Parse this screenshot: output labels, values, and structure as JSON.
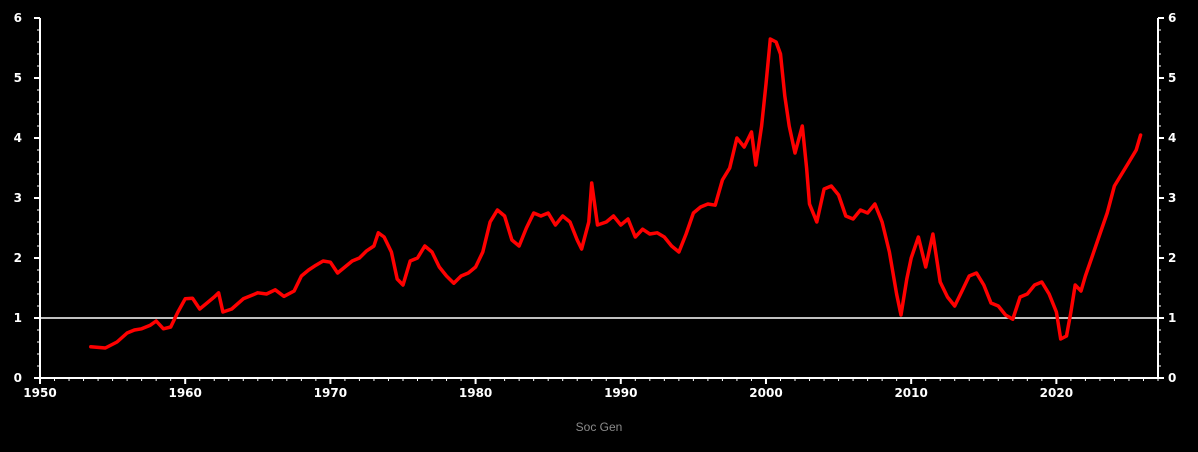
{
  "source": "Soc Gen",
  "colors": {
    "background": "#000000",
    "axis": "#ffffff",
    "series": "#ff0000",
    "reference_line": "#ffffff"
  },
  "chart_data": {
    "type": "line",
    "title": "",
    "xlabel": "",
    "ylabel": "",
    "xlim": [
      1950,
      2027
    ],
    "ylim": [
      0,
      6
    ],
    "x_ticks": [
      "1950",
      "1960",
      "1970",
      "1980",
      "1990",
      "2000",
      "2010",
      "2020"
    ],
    "y_ticks": [
      "0",
      "1",
      "2",
      "3",
      "4",
      "5",
      "6"
    ],
    "y_axis_both_sides": true,
    "reference_line": 1,
    "grid": false,
    "series": [
      {
        "points": [
          [
            1953.5,
            0.52
          ],
          [
            1954.5,
            0.5
          ],
          [
            1955.3,
            0.6
          ],
          [
            1956.0,
            0.75
          ],
          [
            1956.5,
            0.8
          ],
          [
            1957.0,
            0.82
          ],
          [
            1957.6,
            0.88
          ],
          [
            1958.0,
            0.95
          ],
          [
            1958.5,
            0.82
          ],
          [
            1959.0,
            0.85
          ],
          [
            1959.5,
            1.1
          ],
          [
            1960.0,
            1.32
          ],
          [
            1960.5,
            1.33
          ],
          [
            1961.0,
            1.15
          ],
          [
            1961.5,
            1.25
          ],
          [
            1962.0,
            1.35
          ],
          [
            1962.3,
            1.42
          ],
          [
            1962.6,
            1.1
          ],
          [
            1963.2,
            1.15
          ],
          [
            1964.0,
            1.32
          ],
          [
            1965.0,
            1.42
          ],
          [
            1965.6,
            1.4
          ],
          [
            1966.2,
            1.47
          ],
          [
            1966.8,
            1.36
          ],
          [
            1967.5,
            1.45
          ],
          [
            1968.0,
            1.7
          ],
          [
            1968.5,
            1.8
          ],
          [
            1969.0,
            1.88
          ],
          [
            1969.5,
            1.95
          ],
          [
            1970.0,
            1.93
          ],
          [
            1970.5,
            1.75
          ],
          [
            1971.0,
            1.85
          ],
          [
            1971.5,
            1.95
          ],
          [
            1972.0,
            2.0
          ],
          [
            1972.5,
            2.12
          ],
          [
            1973.0,
            2.2
          ],
          [
            1973.3,
            2.42
          ],
          [
            1973.7,
            2.35
          ],
          [
            1974.2,
            2.1
          ],
          [
            1974.6,
            1.65
          ],
          [
            1975.0,
            1.55
          ],
          [
            1975.5,
            1.95
          ],
          [
            1976.0,
            2.0
          ],
          [
            1976.5,
            2.2
          ],
          [
            1977.0,
            2.1
          ],
          [
            1977.5,
            1.85
          ],
          [
            1978.0,
            1.7
          ],
          [
            1978.5,
            1.58
          ],
          [
            1979.0,
            1.7
          ],
          [
            1979.5,
            1.75
          ],
          [
            1980.0,
            1.85
          ],
          [
            1980.5,
            2.1
          ],
          [
            1981.0,
            2.6
          ],
          [
            1981.5,
            2.8
          ],
          [
            1982.0,
            2.7
          ],
          [
            1982.5,
            2.3
          ],
          [
            1983.0,
            2.2
          ],
          [
            1983.5,
            2.5
          ],
          [
            1984.0,
            2.75
          ],
          [
            1984.5,
            2.7
          ],
          [
            1985.0,
            2.75
          ],
          [
            1985.5,
            2.55
          ],
          [
            1986.0,
            2.7
          ],
          [
            1986.5,
            2.6
          ],
          [
            1987.0,
            2.3
          ],
          [
            1987.3,
            2.15
          ],
          [
            1987.8,
            2.6
          ],
          [
            1988.0,
            3.25
          ],
          [
            1988.4,
            2.55
          ],
          [
            1989.0,
            2.6
          ],
          [
            1989.5,
            2.7
          ],
          [
            1990.0,
            2.55
          ],
          [
            1990.5,
            2.65
          ],
          [
            1991.0,
            2.35
          ],
          [
            1991.5,
            2.48
          ],
          [
            1992.0,
            2.4
          ],
          [
            1992.5,
            2.42
          ],
          [
            1993.0,
            2.35
          ],
          [
            1993.5,
            2.2
          ],
          [
            1994.0,
            2.1
          ],
          [
            1994.5,
            2.4
          ],
          [
            1995.0,
            2.75
          ],
          [
            1995.5,
            2.85
          ],
          [
            1996.0,
            2.9
          ],
          [
            1996.5,
            2.88
          ],
          [
            1997.0,
            3.3
          ],
          [
            1997.5,
            3.5
          ],
          [
            1998.0,
            4.0
          ],
          [
            1998.5,
            3.85
          ],
          [
            1999.0,
            4.1
          ],
          [
            1999.3,
            3.55
          ],
          [
            1999.7,
            4.2
          ],
          [
            2000.0,
            4.9
          ],
          [
            2000.3,
            5.65
          ],
          [
            2000.7,
            5.6
          ],
          [
            2001.0,
            5.4
          ],
          [
            2001.3,
            4.7
          ],
          [
            2001.6,
            4.2
          ],
          [
            2002.0,
            3.75
          ],
          [
            2002.5,
            4.2
          ],
          [
            2002.8,
            3.5
          ],
          [
            2003.0,
            2.9
          ],
          [
            2003.5,
            2.6
          ],
          [
            2004.0,
            3.15
          ],
          [
            2004.5,
            3.2
          ],
          [
            2005.0,
            3.05
          ],
          [
            2005.5,
            2.7
          ],
          [
            2006.0,
            2.65
          ],
          [
            2006.5,
            2.8
          ],
          [
            2007.0,
            2.75
          ],
          [
            2007.5,
            2.9
          ],
          [
            2008.0,
            2.6
          ],
          [
            2008.5,
            2.1
          ],
          [
            2009.0,
            1.4
          ],
          [
            2009.3,
            1.05
          ],
          [
            2009.7,
            1.65
          ],
          [
            2010.0,
            2.0
          ],
          [
            2010.5,
            2.35
          ],
          [
            2011.0,
            1.85
          ],
          [
            2011.5,
            2.4
          ],
          [
            2012.0,
            1.6
          ],
          [
            2012.5,
            1.35
          ],
          [
            2013.0,
            1.2
          ],
          [
            2013.5,
            1.45
          ],
          [
            2014.0,
            1.7
          ],
          [
            2014.5,
            1.75
          ],
          [
            2015.0,
            1.55
          ],
          [
            2015.5,
            1.25
          ],
          [
            2016.0,
            1.2
          ],
          [
            2016.5,
            1.05
          ],
          [
            2017.0,
            0.98
          ],
          [
            2017.5,
            1.35
          ],
          [
            2018.0,
            1.4
          ],
          [
            2018.5,
            1.55
          ],
          [
            2019.0,
            1.6
          ],
          [
            2019.5,
            1.4
          ],
          [
            2020.0,
            1.1
          ],
          [
            2020.3,
            0.65
          ],
          [
            2020.7,
            0.7
          ],
          [
            2021.0,
            1.1
          ],
          [
            2021.3,
            1.55
          ],
          [
            2021.7,
            1.45
          ],
          [
            2022.0,
            1.7
          ],
          [
            2022.5,
            2.05
          ],
          [
            2023.0,
            2.4
          ],
          [
            2023.5,
            2.75
          ],
          [
            2024.0,
            3.2
          ],
          [
            2024.5,
            3.4
          ],
          [
            2025.0,
            3.6
          ],
          [
            2025.5,
            3.8
          ],
          [
            2025.8,
            4.05
          ]
        ]
      }
    ]
  }
}
